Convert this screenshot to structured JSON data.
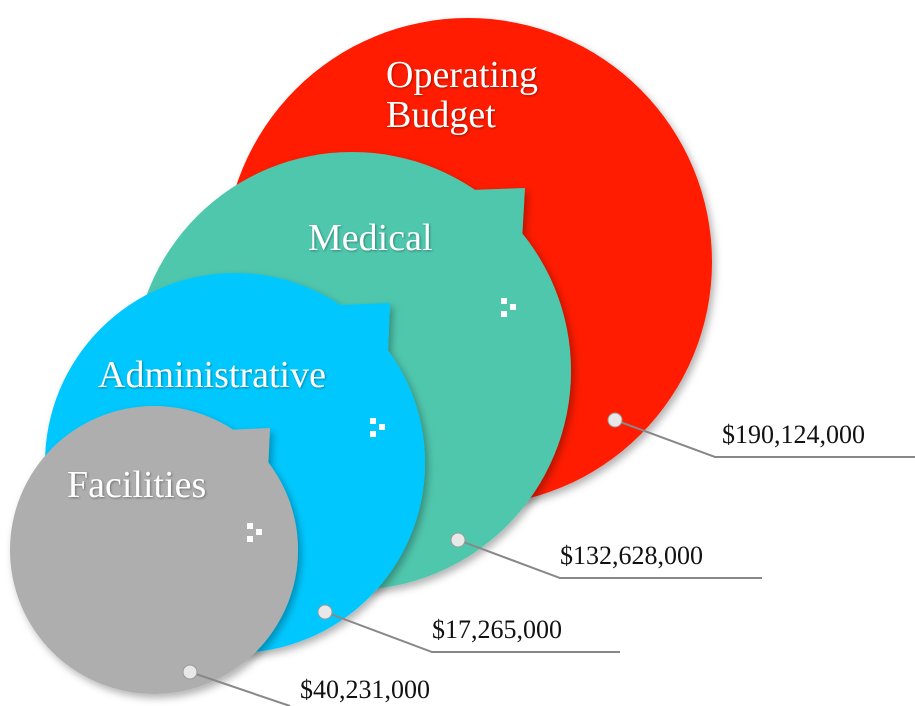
{
  "items": [
    {
      "label": "Operating Budget",
      "amount": "$190,124,000"
    },
    {
      "label": "Medical",
      "amount": "$132,628,000"
    },
    {
      "label": "Administrative",
      "amount": "$17,265,000"
    },
    {
      "label": "Facilities",
      "amount": "$40,231,000"
    }
  ]
}
